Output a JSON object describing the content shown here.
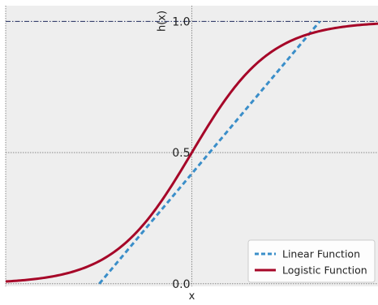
{
  "chart_data": {
    "type": "line",
    "xlabel": "x",
    "ylabel": "h(x)",
    "ylim": [
      0.0,
      1.0
    ],
    "y_ticks": [
      "0.0",
      "0.5",
      "1.0"
    ],
    "grid": true,
    "legend_position": "lower-right",
    "colors": {
      "background": "#eeeeee",
      "grid": "#8a8a8a",
      "reference_line": "#1f2a5c",
      "linear": "#3a8ec9",
      "logistic": "#a60628"
    },
    "reference_line": {
      "y": 1.0,
      "style": "dash-dot"
    },
    "series": [
      {
        "name": "Linear Function",
        "style": "dashed",
        "color": "#3a8ec9",
        "x": [
          -1.7,
          2.35
        ],
        "y": [
          0.0,
          1.0
        ]
      },
      {
        "name": "Logistic Function",
        "style": "solid",
        "color": "#a60628",
        "x": [
          -3.42,
          -3.0,
          -2.5,
          -2.0,
          -1.5,
          -1.0,
          -0.5,
          0.0,
          0.5,
          1.0,
          1.5,
          2.0,
          2.5,
          3.0,
          3.42
        ],
        "y": [
          0.0099,
          0.018,
          0.0384,
          0.08,
          0.1593,
          0.2945,
          0.4925,
          0.5,
          0.7055,
          0.8407,
          0.92,
          0.9616,
          0.982,
          0.9917,
          0.9957
        ]
      }
    ]
  }
}
